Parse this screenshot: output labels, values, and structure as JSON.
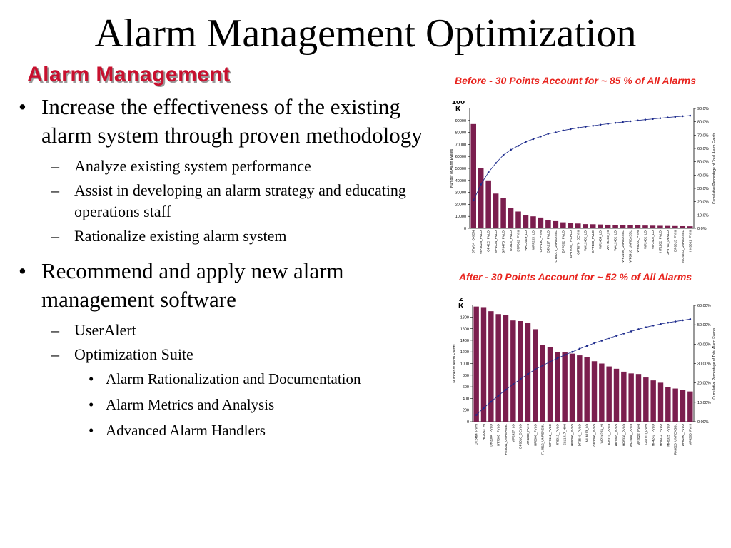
{
  "slide": {
    "title": "Alarm Management Optimization",
    "subtitle": "Alarm Management",
    "bullets": [
      {
        "level": 1,
        "text": "Increase the effectiveness of the existing alarm system through proven methodology"
      },
      {
        "level": 2,
        "text": "Analyze existing system performance"
      },
      {
        "level": 2,
        "text": "Assist in developing an alarm strategy and educating operations staff"
      },
      {
        "level": 2,
        "text": "Rationalize existing alarm system"
      },
      {
        "level": 1,
        "text": "Recommend and apply new alarm management software"
      },
      {
        "level": 2,
        "text": "UserAlert"
      },
      {
        "level": 2,
        "text": "Optimization Suite"
      },
      {
        "level": 3,
        "text": "Alarm Rationalization and Documentation"
      },
      {
        "level": 3,
        "text": "Alarm Metrics and Analysis"
      },
      {
        "level": 3,
        "text": "Advanced Alarm Handlers"
      }
    ]
  },
  "chart_data": [
    {
      "type": "bar",
      "title": "Before - 30 Points Account for ~ 85 % of All Alarms",
      "corner_label": "100 K",
      "ylabel": "Number of Alarm Events",
      "y2label": "Cumulative Percentage of Total Alarm Events",
      "ylim": [
        0,
        100000
      ],
      "yticks": [
        "0",
        "10000",
        "20000",
        "30000",
        "40000",
        "50000",
        "60000",
        "70000",
        "80000",
        "90000"
      ],
      "y2lim": [
        0,
        90
      ],
      "y2ticks": [
        "0.0%",
        "10.0%",
        "20.0%",
        "30.0%",
        "40.0%",
        "50.0%",
        "60.0%",
        "70.0%",
        "80.0%",
        "90.0%"
      ],
      "bar_color": "#7b1e4e",
      "line_color": "#1c2a8c",
      "categories": [
        "BTW14_OXIDN",
        "WP302B_PVLO",
        "OP42C_PVLO",
        "WF4024_PVLO",
        "GP347B_PVLO",
        "OL81E_PVLO",
        "BTF002_PVHI",
        "WAL2029_LO",
        "WPF20X_LO",
        "OPF130_PVHI",
        "OTA217_PVLO",
        "OTB017_UNREASBL",
        "BPF092_PVLO",
        "GPT076_TRCALO",
        "GPT076_DEVHI",
        "WKL2402_LO",
        "GPT130_PVLO",
        "WF2404_LO",
        "WAH5402_HI",
        "WAL2402_LO",
        "WF2406_UNREASBL",
        "WF8410_UNREASBL",
        "WF8010_PVHI",
        "WF2402_LO",
        "WF2402_LO",
        "HT1102_PVLO",
        "DP8702_DEVLO",
        "DP6013_PVHI",
        "MU4622_UNREASBL",
        "HK8061_PVHI"
      ],
      "values": [
        87000,
        50000,
        40000,
        29000,
        25000,
        17000,
        14000,
        11000,
        10000,
        9000,
        7000,
        6000,
        5000,
        4500,
        4000,
        3500,
        3400,
        3200,
        3000,
        2800,
        2600,
        2500,
        2400,
        2300,
        2200,
        2100,
        2000,
        1900,
        1800,
        1700
      ],
      "cumulative_percent": [
        21,
        33,
        42,
        49,
        55,
        59,
        62,
        65,
        67,
        69,
        71,
        72,
        73.5,
        74.5,
        75.5,
        76.3,
        77,
        77.8,
        78.5,
        79.2,
        79.8,
        80.4,
        81,
        81.6,
        82.1,
        82.7,
        83.2,
        83.7,
        84.2,
        84.6
      ]
    },
    {
      "type": "bar",
      "title": "After - 30 Points Account for ~ 52 % of All Alarms",
      "corner_label": "2 K",
      "ylabel": "Number of Alarm Events",
      "y2label": "Cumulative Percentage of Total Alarm Events",
      "ylim": [
        0,
        2000
      ],
      "yticks": [
        "0",
        "200",
        "400",
        "600",
        "800",
        "1000",
        "1200",
        "1400",
        "1600",
        "1800"
      ],
      "y2lim": [
        0,
        60
      ],
      "y2ticks": [
        "0.00%",
        "10.00%",
        "20.00%",
        "30.00%",
        "40.00%",
        "50.00%",
        "60.00%"
      ],
      "bar_color": "#7b1e4e",
      "line_color": "#1c2a8c",
      "categories": [
        "OT2464_PVHI",
        "HL3002_HI",
        "DR3004_PVLO",
        "BT7005_PVLO",
        "FE8041_UNREASBL",
        "WF2427_LO",
        "DP8010_DEVLO",
        "MT4200_PVHI",
        "HF8000_PVLO",
        "FL4812_UNREASBL",
        "WP7112_PVLO",
        "JP8013_PVLO",
        "SLL1417_HIHI",
        "HF8000_PVLO",
        "DP3640_PVLO",
        "ML4013_LO",
        "GP3000_PVLO",
        "WP24203_HI",
        "JF8010_PVLO",
        "HB1402_PVLO",
        "HF8030_PVLO",
        "WP2404_PVLO",
        "MF2022_PVHI",
        "GA1110_PVHI",
        "HF4242_PVLO",
        "HF8013_PVLO",
        "MF8025_PVLO",
        "FA8023_UNREASBL",
        "DP6200_PVLO",
        "MF4203_PVHI"
      ],
      "values": [
        1980,
        1970,
        1900,
        1850,
        1830,
        1740,
        1730,
        1700,
        1590,
        1320,
        1280,
        1200,
        1190,
        1170,
        1140,
        1110,
        1040,
        1000,
        950,
        910,
        860,
        830,
        820,
        760,
        710,
        670,
        590,
        570,
        540,
        520
      ],
      "cumulative_percent": [
        3.5,
        7,
        10.3,
        13.5,
        16.5,
        19.3,
        22,
        24.6,
        27,
        29,
        30.9,
        32.7,
        34.4,
        36,
        37.6,
        39.1,
        40.5,
        41.8,
        43.1,
        44.3,
        45.5,
        46.6,
        47.7,
        48.7,
        49.6,
        50.4,
        51.1,
        51.7,
        52.3,
        52.9
      ]
    }
  ]
}
